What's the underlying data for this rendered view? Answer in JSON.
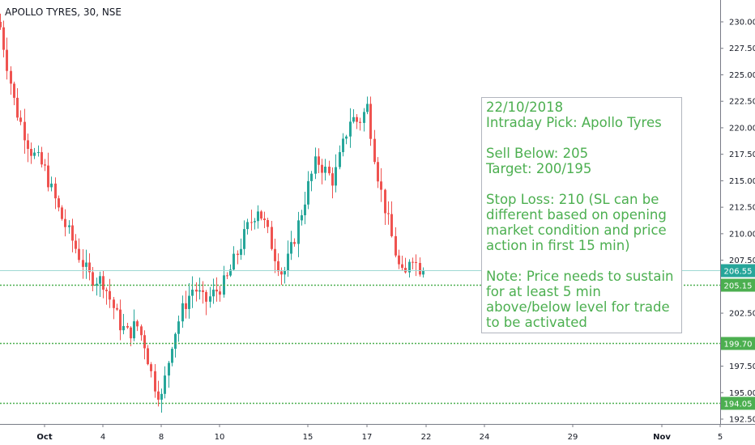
{
  "chart_header": {
    "title": "APOLLO TYRES, 30, NSE"
  },
  "annotation": {
    "lines": [
      "22/10/2018",
      "Intraday Pick: Apollo Tyres",
      "",
      "Sell Below: 205",
      "Target: 200/195",
      "",
      "Stop Loss: 210 (SL can be",
      "different based on opening",
      "market condition and price",
      "action in first 15 min)",
      "",
      "Note: Price needs to sustain",
      "for at least 5 min",
      "above/below level for trade",
      "to be activated"
    ],
    "color": "#4caf50"
  },
  "colors": {
    "up": "#26a69a",
    "down": "#ef5350",
    "level_line": "#4caf50",
    "last_price": "#26a69a",
    "last_price_line": "#9fd8d3"
  },
  "chart_data": {
    "type": "candlestick",
    "title": "APOLLO TYRES, 30, NSE",
    "ylim": [
      192.5,
      230.0
    ],
    "y_ticks": [
      "192.50",
      "195.00",
      "197.50",
      "200.00",
      "202.50",
      "205.00",
      "207.50",
      "210.00",
      "212.50",
      "215.00",
      "217.50",
      "220.00",
      "222.50",
      "225.00",
      "227.50",
      "230.00"
    ],
    "x_ticks": [
      "Oct",
      "4",
      "8",
      "10",
      "15",
      "17",
      "22",
      "24",
      "29",
      "Nov",
      "5"
    ],
    "last_price": "206.55",
    "levels": [
      {
        "label": "205.15",
        "value": 205.15
      },
      {
        "label": "199.70",
        "value": 199.7
      },
      {
        "label": "194.05",
        "value": 194.05
      }
    ],
    "segments": [
      {
        "range": [
          "Sep 28",
          "Oct 1"
        ],
        "closes": [
          229.5,
          222.0,
          218.0,
          216.0
        ]
      },
      {
        "range": [
          "Oct 1",
          "Oct 4"
        ],
        "closes": [
          216.0,
          212.0,
          209.0,
          206.0,
          205.5
        ]
      },
      {
        "range": [
          "Oct 4",
          "Oct 8"
        ],
        "closes": [
          205.5,
          203.5,
          201.5,
          200.5,
          201.5,
          199.5,
          196.0,
          194.5
        ]
      },
      {
        "range": [
          "Oct 8",
          "Oct 12"
        ],
        "closes": [
          194.5,
          200.0,
          203.0,
          205.0,
          203.5,
          204.5,
          205.5,
          208.0,
          210.5,
          212.5
        ]
      },
      {
        "range": [
          "Oct 12",
          "Oct 15"
        ],
        "closes": [
          212.5,
          210.5,
          208.0,
          206.0,
          208.5,
          211.5,
          214.5
        ]
      },
      {
        "range": [
          "Oct 15",
          "Oct 17"
        ],
        "closes": [
          214.5,
          217.0,
          216.0,
          215.0,
          218.0,
          221.0,
          220.5,
          222.0
        ]
      },
      {
        "range": [
          "Oct 17",
          "Oct 22"
        ],
        "closes": [
          222.0,
          218.0,
          214.5,
          212.0,
          209.5,
          207.0,
          205.5,
          208.5,
          207.0,
          206.55
        ]
      }
    ]
  }
}
